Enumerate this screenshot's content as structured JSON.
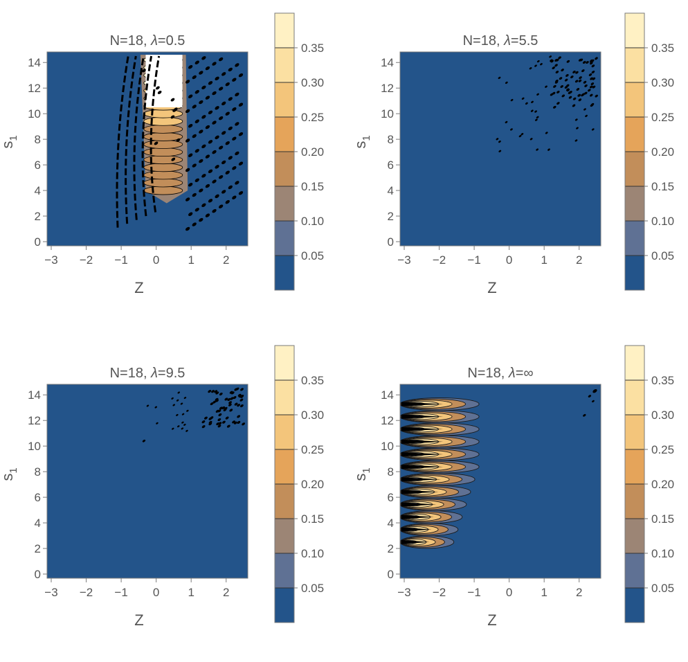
{
  "chart_data": [
    {
      "type": "heatmap",
      "title_prefix": "N=18, ",
      "title_symbol": "λ",
      "title_suffix": "=0.5",
      "xlabel": "Z",
      "ylabel_base": "s",
      "ylabel_sub": "1",
      "xlim": [
        -3,
        2.5
      ],
      "ylim": [
        0,
        14.5
      ],
      "xticks": [
        -3,
        -2,
        -1,
        0,
        1,
        2
      ],
      "yticks": [
        0,
        2,
        4,
        6,
        8,
        10,
        12,
        14
      ],
      "pattern": "central-band",
      "colorbar": {
        "levels": [
          0.05,
          0.1,
          0.15,
          0.2,
          0.25,
          0.3,
          0.35
        ],
        "labels": [
          "0.05",
          "0.10",
          "0.15",
          "0.20",
          "0.25",
          "0.30",
          "0.35"
        ],
        "colors": [
          "#23548a",
          "#5f7194",
          "#9c8575",
          "#c28e5a",
          "#e5a45a",
          "#f3c57b",
          "#fbe0a2",
          "#fff1c4"
        ]
      }
    },
    {
      "type": "heatmap",
      "title_prefix": "N=18, ",
      "title_symbol": "λ",
      "title_suffix": "=5.5",
      "xlabel": "Z",
      "ylabel_base": "s",
      "ylabel_sub": "1",
      "xlim": [
        -3,
        2.5
      ],
      "ylim": [
        0,
        14.5
      ],
      "xticks": [
        -3,
        -2,
        -1,
        0,
        1,
        2
      ],
      "yticks": [
        0,
        2,
        4,
        6,
        8,
        10,
        12,
        14
      ],
      "pattern": "sparse-upper-right",
      "colorbar": {
        "levels": [
          0.05,
          0.1,
          0.15,
          0.2,
          0.25,
          0.3,
          0.35
        ],
        "labels": [
          "0.05",
          "0.10",
          "0.15",
          "0.20",
          "0.25",
          "0.30",
          "0.35"
        ],
        "colors": [
          "#23548a",
          "#5f7194",
          "#9c8575",
          "#c28e5a",
          "#e5a45a",
          "#f3c57b",
          "#fbe0a2",
          "#fff1c4"
        ]
      }
    },
    {
      "type": "heatmap",
      "title_prefix": "N=18, ",
      "title_symbol": "λ",
      "title_suffix": "=9.5",
      "xlabel": "Z",
      "ylabel_base": "s",
      "ylabel_sub": "1",
      "xlim": [
        -3,
        2.5
      ],
      "ylim": [
        0,
        14.5
      ],
      "xticks": [
        -3,
        -2,
        -1,
        0,
        1,
        2
      ],
      "yticks": [
        0,
        2,
        4,
        6,
        8,
        10,
        12,
        14
      ],
      "pattern": "corner-upper-right",
      "colorbar": {
        "levels": [
          0.05,
          0.1,
          0.15,
          0.2,
          0.25,
          0.3,
          0.35
        ],
        "labels": [
          "0.05",
          "0.10",
          "0.15",
          "0.20",
          "0.25",
          "0.30",
          "0.35"
        ],
        "colors": [
          "#23548a",
          "#5f7194",
          "#9c8575",
          "#c28e5a",
          "#e5a45a",
          "#f3c57b",
          "#fbe0a2",
          "#fff1c4"
        ]
      }
    },
    {
      "type": "heatmap",
      "title_prefix": "N=18, ",
      "title_symbol": "λ",
      "title_suffix": "=∞",
      "xlabel": "Z",
      "ylabel_base": "s",
      "ylabel_sub": "1",
      "xlim": [
        -3,
        2.5
      ],
      "ylim": [
        0,
        14.5
      ],
      "xticks": [
        -3,
        -2,
        -1,
        0,
        1,
        2
      ],
      "yticks": [
        0,
        2,
        4,
        6,
        8,
        10,
        12,
        14
      ],
      "pattern": "left-lobes",
      "colorbar": {
        "levels": [
          0.05,
          0.1,
          0.15,
          0.2,
          0.25,
          0.3,
          0.35
        ],
        "labels": [
          "0.05",
          "0.10",
          "0.15",
          "0.20",
          "0.25",
          "0.30",
          "0.35"
        ],
        "colors": [
          "#23548a",
          "#5f7194",
          "#9c8575",
          "#c28e5a",
          "#e5a45a",
          "#f3c57b",
          "#fbe0a2",
          "#fff1c4"
        ]
      }
    }
  ]
}
